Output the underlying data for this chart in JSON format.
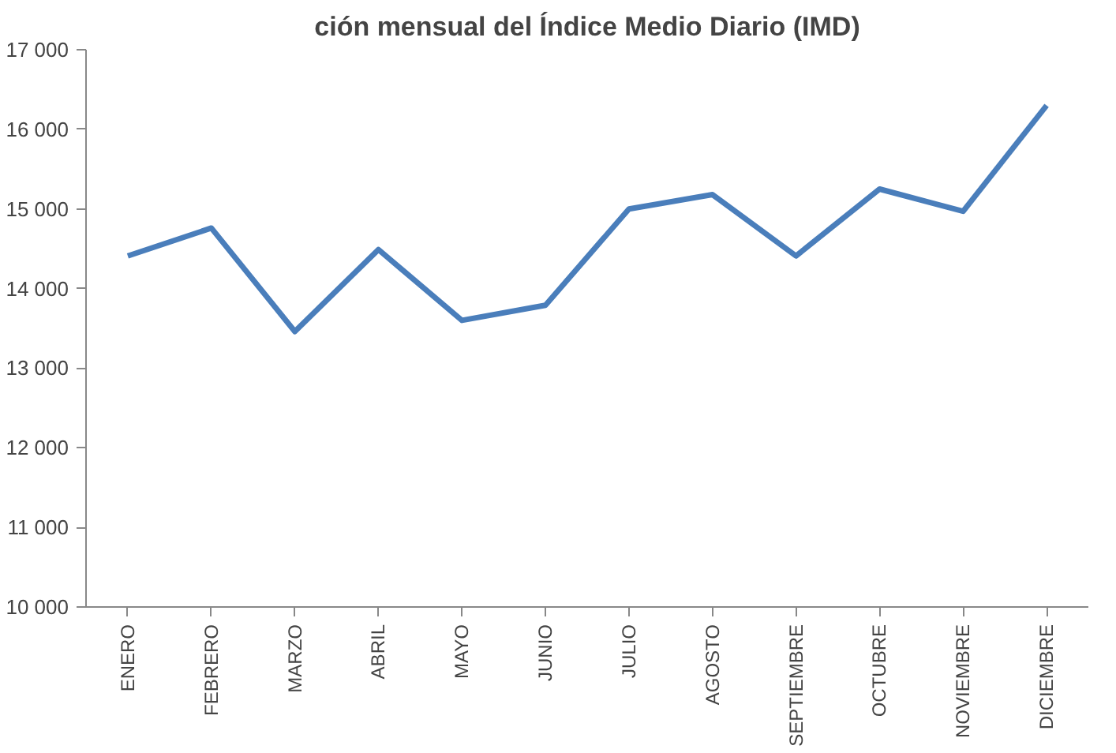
{
  "chart_data": {
    "type": "line",
    "title": "ción mensual del Índice Medio Diario (IMD)",
    "categories": [
      "ENERO",
      "FEBRERO",
      "MARZO",
      "ABRIL",
      "MAYO",
      "JUNIO",
      "JULIO",
      "AGOSTO",
      "SEPTIEMBRE",
      "OCTUBRE",
      "NOVIEMBRE",
      "DICIEMBRE"
    ],
    "series": [
      {
        "color": "#4a7ebb",
        "values": [
          14410,
          14760,
          13460,
          14490,
          13600,
          13790,
          15000,
          15180,
          14410,
          15250,
          14970,
          16300
        ]
      }
    ],
    "ylim": [
      10000,
      17000
    ],
    "yticks": [
      {
        "value": 10000,
        "label": "10 000"
      },
      {
        "value": 11000,
        "label": "11 000"
      },
      {
        "value": 12000,
        "label": "12 000"
      },
      {
        "value": 13000,
        "label": "13 000"
      },
      {
        "value": 14000,
        "label": "14 000"
      },
      {
        "value": 15000,
        "label": "15 000"
      },
      {
        "value": 16000,
        "label": "16 000"
      },
      {
        "value": 17000,
        "label": "17 000"
      }
    ],
    "grid": false,
    "marker": "none",
    "line_style": "solid"
  }
}
